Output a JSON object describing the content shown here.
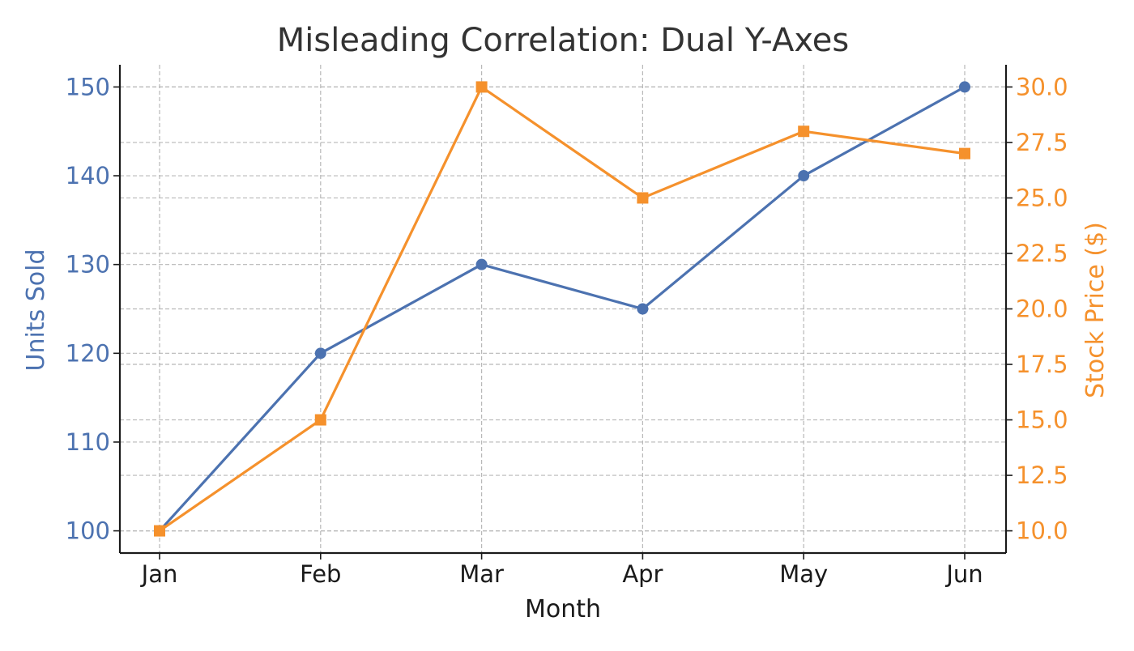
{
  "chart_data": {
    "type": "line",
    "title": "Misleading Correlation: Dual Y-Axes",
    "xlabel": "Month",
    "categories": [
      "Jan",
      "Feb",
      "Mar",
      "Apr",
      "May",
      "Jun"
    ],
    "grid": true,
    "y_left": {
      "label": "Units Sold",
      "color": "#4c72b0",
      "ylim": [
        97.5,
        152.5
      ],
      "ticks": [
        100,
        110,
        120,
        130,
        140,
        150
      ],
      "tick_labels": [
        "100",
        "110",
        "120",
        "130",
        "140",
        "150"
      ]
    },
    "y_right": {
      "label": "Stock Price ($)",
      "color": "#f5912c",
      "ylim": [
        9.0,
        31.0
      ],
      "ticks": [
        10.0,
        12.5,
        15.0,
        17.5,
        20.0,
        22.5,
        25.0,
        27.5,
        30.0
      ],
      "tick_labels": [
        "10.0",
        "12.5",
        "15.0",
        "17.5",
        "20.0",
        "22.5",
        "25.0",
        "27.5",
        "30.0"
      ]
    },
    "series": [
      {
        "axis": "left",
        "marker": "circle",
        "color": "#4c72b0",
        "values": [
          100,
          120,
          130,
          125,
          140,
          150
        ]
      },
      {
        "axis": "right",
        "marker": "square",
        "color": "#f5912c",
        "values": [
          10,
          15,
          30,
          25,
          28,
          27
        ]
      }
    ]
  }
}
